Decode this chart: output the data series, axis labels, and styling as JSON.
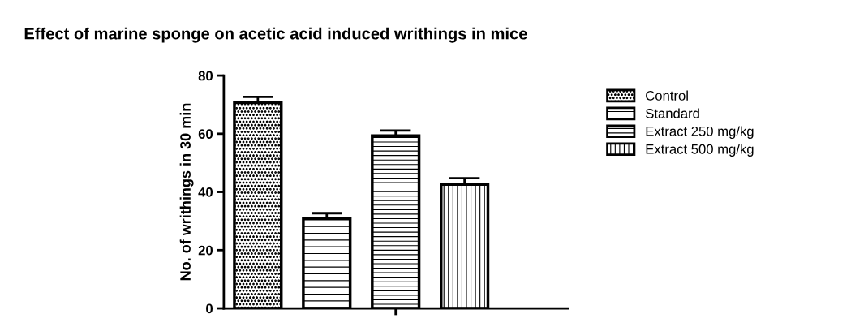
{
  "chart_data": {
    "type": "bar",
    "title": "Effect of marine sponge on acetic acid induced writhings in mice",
    "ylabel": "No. of writhings in 30 min",
    "categories": [
      null
    ],
    "series": [
      {
        "name": "Control",
        "color": "#000000",
        "values": [
          70.7
        ],
        "errors": [
          [
            70.7,
            72.7
          ]
        ]
      },
      {
        "name": "Standard",
        "color": "#000000",
        "values": [
          30.9
        ],
        "errors": [
          [
            30.9,
            32.7
          ]
        ]
      },
      {
        "name": "Extract 250 mg/kg",
        "color": "#000000",
        "values": [
          59.3
        ],
        "errors": [
          [
            59.3,
            61.1
          ]
        ]
      },
      {
        "name": "Extract 500 mg/kg",
        "color": "#000000",
        "values": [
          42.6
        ],
        "errors": [
          [
            42.6,
            44.7
          ]
        ]
      }
    ],
    "ylim": [
      0,
      80
    ],
    "yticks": [
      0,
      20,
      40,
      60,
      80
    ],
    "grid": false,
    "legend": "right"
  }
}
